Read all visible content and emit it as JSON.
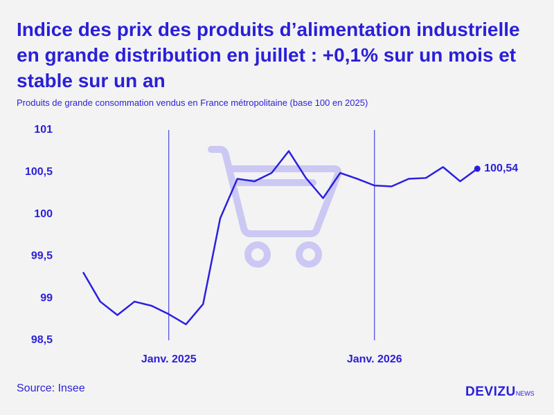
{
  "chart_data": {
    "type": "line",
    "title": "Indice des prix des produits d’alimentation industrielle en grande distribution en juillet : +0,1% sur un mois et stable sur un an",
    "subtitle": "Produits de grande consommation vendus en France métropolitaine (base 100 en 2025)",
    "source": "Source: Insee",
    "brand": "DEVIZU",
    "brand_suffix": "NEWS",
    "categories": [
      null,
      null,
      null,
      null,
      null,
      "Janv. 2025",
      null,
      null,
      null,
      null,
      null,
      null,
      null,
      null,
      null,
      null,
      null,
      "Janv. 2026",
      null,
      null,
      null,
      null,
      null,
      null
    ],
    "series": [
      {
        "color": "#2a1fe0",
        "values": [
          99.31,
          98.96,
          98.8,
          98.96,
          98.91,
          98.81,
          98.69,
          98.93,
          99.95,
          100.42,
          100.39,
          100.49,
          100.75,
          100.43,
          100.19,
          100.49,
          100.42,
          100.34,
          100.33,
          100.42,
          100.43,
          100.56,
          100.39,
          100.54
        ],
        "value_labels": [
          null,
          null,
          null,
          null,
          null,
          null,
          null,
          null,
          null,
          null,
          null,
          null,
          null,
          null,
          null,
          null,
          null,
          null,
          null,
          null,
          null,
          null,
          null,
          "100,54"
        ]
      }
    ],
    "ylim": [
      98.5,
      101
    ],
    "yticks": [
      {
        "value": 98.5,
        "label": "98,5"
      },
      99,
      {
        "value": 99.5,
        "label": "99,5"
      },
      100,
      {
        "value": 100.5,
        "label": "100,5"
      },
      101
    ],
    "category_lines": true
  }
}
